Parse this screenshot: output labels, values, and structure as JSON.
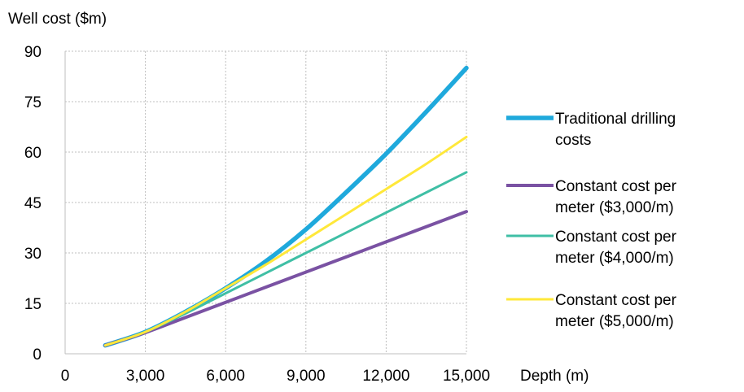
{
  "chart_data": {
    "type": "line",
    "ylabel": "Well cost ($m)",
    "xlabel": "Depth (m)",
    "xlim": [
      0,
      15000
    ],
    "ylim": [
      0,
      90
    ],
    "xticks": [
      0,
      3000,
      6000,
      9000,
      12000,
      15000
    ],
    "xtick_labels": [
      "0",
      "3,000",
      "6,000",
      "9,000",
      "12,000",
      "15,000"
    ],
    "yticks": [
      0,
      15,
      30,
      45,
      60,
      75,
      90
    ],
    "ytick_labels": [
      "0",
      "15",
      "30",
      "45",
      "60",
      "75",
      "90"
    ],
    "grid": true,
    "legend_position": "right",
    "x": [
      1500,
      3000,
      4500,
      6000,
      7500,
      9000,
      10500,
      12000,
      13500,
      15000
    ],
    "series": [
      {
        "name": "Traditional drilling costs",
        "color": "#1fa9dc",
        "width": "thick",
        "values": [
          2.5,
          6.5,
          12.5,
          19.5,
          27.5,
          37,
          48,
          59.5,
          72,
          85
        ]
      },
      {
        "name": "Constant cost per meter ($3,000/m)",
        "color": "#7a52a3",
        "width": "medium",
        "values": [
          2.5,
          6.3,
          10.8,
          15.3,
          19.8,
          24.3,
          28.8,
          33.3,
          37.8,
          42.3
        ]
      },
      {
        "name": "Constant cost per meter ($4,000/m)",
        "color": "#3fbfa5",
        "width": "thin",
        "values": [
          2.5,
          6.5,
          12.0,
          18.0,
          24.0,
          30.0,
          36.0,
          42.0,
          48.0,
          54.0
        ]
      },
      {
        "name": "Constant cost per meter ($5,000/m)",
        "color": "#ffe83a",
        "width": "thin",
        "values": [
          2.5,
          6.5,
          12.5,
          19.5,
          26.5,
          34.0,
          41.5,
          49.0,
          56.5,
          64.5
        ]
      }
    ],
    "legend": [
      {
        "lines": [
          "Traditional drilling",
          "costs"
        ]
      },
      {
        "lines": [
          "Constant cost per",
          "meter ($3,000/m)"
        ]
      },
      {
        "lines": [
          "Constant cost per",
          "meter ($4,000/m)"
        ]
      },
      {
        "lines": [
          "Constant cost per",
          "meter ($5,000/m)"
        ]
      }
    ]
  }
}
